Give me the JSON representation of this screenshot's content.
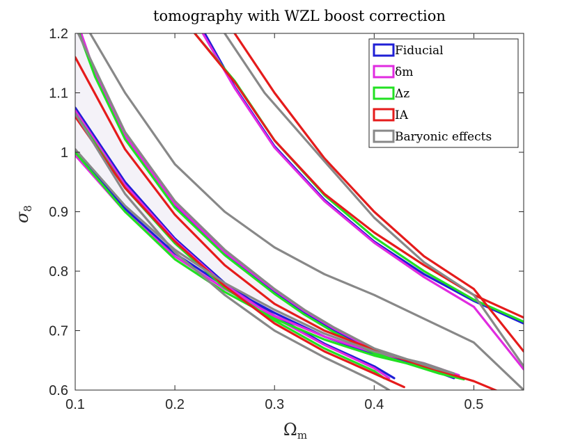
{
  "chart_data": {
    "type": "line",
    "title": "tomography with WZL boost correction",
    "xlabel_main": "Ω",
    "xlabel_sub": "m",
    "ylabel_main": "σ",
    "ylabel_sub": "8",
    "xlim": [
      0.1,
      0.55
    ],
    "ylim": [
      0.6,
      1.2
    ],
    "xticks": [
      0.1,
      0.2,
      0.3,
      0.4,
      0.5
    ],
    "yticks": [
      0.6,
      0.7,
      0.8,
      0.9,
      1.0,
      1.1,
      1.2
    ],
    "xtick_labels": [
      "0.1",
      "0.2",
      "0.3",
      "0.4",
      "0.5"
    ],
    "ytick_labels": [
      "0.6",
      "0.7",
      "0.8",
      "0.9",
      "1",
      "1.1",
      "1.2"
    ],
    "grid": false,
    "legend_position": "top-right",
    "fill_color": "#f4f2f8",
    "series": [
      {
        "name": "Fiducial",
        "legend_label": "Fiducial",
        "color": "#1f1fd6",
        "contours": [
          [
            [
              0.1,
              1.0
            ],
            [
              0.15,
              0.905
            ],
            [
              0.2,
              0.83
            ],
            [
              0.25,
              0.775
            ],
            [
              0.3,
              0.73
            ],
            [
              0.35,
              0.69
            ],
            [
              0.4,
              0.66
            ],
            [
              0.45,
              0.64
            ],
            [
              0.48,
              0.62
            ],
            [
              0.46,
              0.632
            ],
            [
              0.4,
              0.665
            ],
            [
              0.36,
              0.7
            ],
            [
              0.33,
              0.73
            ],
            [
              0.3,
              0.765
            ],
            [
              0.25,
              0.83
            ],
            [
              0.2,
              0.91
            ],
            [
              0.15,
              1.025
            ],
            [
              0.12,
              1.13
            ],
            [
              0.105,
              1.2
            ]
          ],
          [
            [
              0.1,
              1.075
            ],
            [
              0.15,
              0.95
            ],
            [
              0.2,
              0.855
            ],
            [
              0.25,
              0.78
            ],
            [
              0.3,
              0.725
            ],
            [
              0.35,
              0.678
            ],
            [
              0.4,
              0.64
            ],
            [
              0.42,
              0.62
            ]
          ],
          [
            [
              0.23,
              1.2
            ],
            [
              0.26,
              1.11
            ],
            [
              0.3,
              1.01
            ],
            [
              0.35,
              0.92
            ],
            [
              0.4,
              0.85
            ],
            [
              0.45,
              0.795
            ],
            [
              0.5,
              0.75
            ],
            [
              0.55,
              0.712
            ]
          ]
        ]
      },
      {
        "name": "δm",
        "legend_label": "δm",
        "color": "#e02be0",
        "contours": [
          [
            [
              0.1,
              0.995
            ],
            [
              0.15,
              0.9
            ],
            [
              0.2,
              0.825
            ],
            [
              0.25,
              0.77
            ],
            [
              0.3,
              0.725
            ],
            [
              0.35,
              0.69
            ],
            [
              0.4,
              0.663
            ],
            [
              0.45,
              0.645
            ],
            [
              0.485,
              0.625
            ],
            [
              0.47,
              0.632
            ],
            [
              0.4,
              0.668
            ],
            [
              0.36,
              0.703
            ],
            [
              0.33,
              0.733
            ],
            [
              0.3,
              0.768
            ],
            [
              0.25,
              0.832
            ],
            [
              0.2,
              0.913
            ],
            [
              0.15,
              1.028
            ],
            [
              0.12,
              1.133
            ],
            [
              0.106,
              1.2
            ]
          ],
          [
            [
              0.1,
              1.07
            ],
            [
              0.15,
              0.945
            ],
            [
              0.2,
              0.852
            ],
            [
              0.25,
              0.777
            ],
            [
              0.3,
              0.722
            ],
            [
              0.35,
              0.676
            ],
            [
              0.4,
              0.637
            ],
            [
              0.415,
              0.62
            ]
          ],
          [
            [
              0.228,
              1.2
            ],
            [
              0.26,
              1.108
            ],
            [
              0.3,
              1.008
            ],
            [
              0.35,
              0.918
            ],
            [
              0.4,
              0.848
            ],
            [
              0.45,
              0.79
            ],
            [
              0.5,
              0.74
            ],
            [
              0.55,
              0.635
            ]
          ]
        ]
      },
      {
        "name": "Δz",
        "legend_label": "Δz",
        "color": "#22e022",
        "contours": [
          [
            [
              0.1,
              1.0
            ],
            [
              0.15,
              0.9
            ],
            [
              0.2,
              0.82
            ],
            [
              0.25,
              0.765
            ],
            [
              0.3,
              0.72
            ],
            [
              0.35,
              0.685
            ],
            [
              0.4,
              0.658
            ],
            [
              0.45,
              0.638
            ],
            [
              0.49,
              0.618
            ],
            [
              0.465,
              0.628
            ],
            [
              0.4,
              0.662
            ],
            [
              0.36,
              0.697
            ],
            [
              0.33,
              0.727
            ],
            [
              0.3,
              0.762
            ],
            [
              0.25,
              0.827
            ],
            [
              0.2,
              0.907
            ],
            [
              0.15,
              1.022
            ],
            [
              0.12,
              1.127
            ],
            [
              0.104,
              1.2
            ]
          ],
          [
            [
              0.1,
              1.065
            ],
            [
              0.15,
              0.94
            ],
            [
              0.2,
              0.847
            ],
            [
              0.25,
              0.772
            ],
            [
              0.3,
              0.717
            ],
            [
              0.35,
              0.67
            ],
            [
              0.4,
              0.632
            ],
            [
              0.41,
              0.62
            ]
          ],
          [
            [
              0.22,
              1.2
            ],
            [
              0.26,
              1.12
            ],
            [
              0.3,
              1.02
            ],
            [
              0.35,
              0.928
            ],
            [
              0.4,
              0.857
            ],
            [
              0.45,
              0.8
            ],
            [
              0.5,
              0.752
            ],
            [
              0.55,
              0.715
            ]
          ]
        ]
      },
      {
        "name": "IA",
        "legend_label": "IA",
        "color": "#e51b1b",
        "contours": [
          [
            [
              0.1,
              1.16
            ],
            [
              0.15,
              1.005
            ],
            [
              0.2,
              0.895
            ],
            [
              0.25,
              0.81
            ],
            [
              0.3,
              0.745
            ],
            [
              0.35,
              0.7
            ],
            [
              0.4,
              0.668
            ],
            [
              0.45,
              0.64
            ],
            [
              0.5,
              0.615
            ],
            [
              0.55,
              0.58
            ]
          ],
          [
            [
              0.1,
              1.06
            ],
            [
              0.15,
              0.94
            ],
            [
              0.2,
              0.85
            ],
            [
              0.25,
              0.775
            ],
            [
              0.3,
              0.712
            ],
            [
              0.35,
              0.665
            ],
            [
              0.4,
              0.628
            ],
            [
              0.43,
              0.605
            ]
          ],
          [
            [
              0.22,
              1.2
            ],
            [
              0.26,
              1.118
            ],
            [
              0.3,
              1.02
            ],
            [
              0.35,
              0.93
            ],
            [
              0.4,
              0.865
            ],
            [
              0.45,
              0.81
            ],
            [
              0.5,
              0.76
            ],
            [
              0.55,
              0.722
            ]
          ],
          [
            [
              0.26,
              1.2
            ],
            [
              0.3,
              1.1
            ],
            [
              0.35,
              0.99
            ],
            [
              0.4,
              0.9
            ],
            [
              0.45,
              0.825
            ],
            [
              0.5,
              0.77
            ],
            [
              0.55,
              0.665
            ]
          ]
        ]
      },
      {
        "name": "Baryonic effects",
        "legend_label": "Baryonic effects",
        "color": "#888888",
        "contours": [
          [
            [
              0.1,
              1.005
            ],
            [
              0.15,
              0.91
            ],
            [
              0.2,
              0.836
            ],
            [
              0.25,
              0.78
            ],
            [
              0.3,
              0.735
            ],
            [
              0.35,
              0.695
            ],
            [
              0.4,
              0.665
            ],
            [
              0.45,
              0.645
            ],
            [
              0.48,
              0.628
            ],
            [
              0.46,
              0.637
            ],
            [
              0.4,
              0.67
            ],
            [
              0.36,
              0.705
            ],
            [
              0.33,
              0.735
            ],
            [
              0.3,
              0.77
            ],
            [
              0.25,
              0.836
            ],
            [
              0.2,
              0.918
            ],
            [
              0.15,
              1.034
            ],
            [
              0.12,
              1.14
            ],
            [
              0.103,
              1.2
            ]
          ],
          [
            [
              0.1,
              1.065
            ],
            [
              0.15,
              0.93
            ],
            [
              0.2,
              0.832
            ],
            [
              0.25,
              0.76
            ],
            [
              0.3,
              0.7
            ],
            [
              0.35,
              0.655
            ],
            [
              0.4,
              0.615
            ],
            [
              0.415,
              0.6
            ]
          ],
          [
            [
              0.115,
              1.2
            ],
            [
              0.15,
              1.1
            ],
            [
              0.2,
              0.98
            ],
            [
              0.25,
              0.9
            ],
            [
              0.3,
              0.84
            ],
            [
              0.35,
              0.795
            ],
            [
              0.4,
              0.76
            ],
            [
              0.45,
              0.72
            ],
            [
              0.5,
              0.68
            ],
            [
              0.55,
              0.6
            ]
          ],
          [
            [
              0.25,
              1.2
            ],
            [
              0.29,
              1.1
            ],
            [
              0.35,
              0.985
            ],
            [
              0.4,
              0.89
            ],
            [
              0.45,
              0.815
            ],
            [
              0.5,
              0.76
            ],
            [
              0.55,
              0.64
            ]
          ]
        ]
      }
    ]
  }
}
